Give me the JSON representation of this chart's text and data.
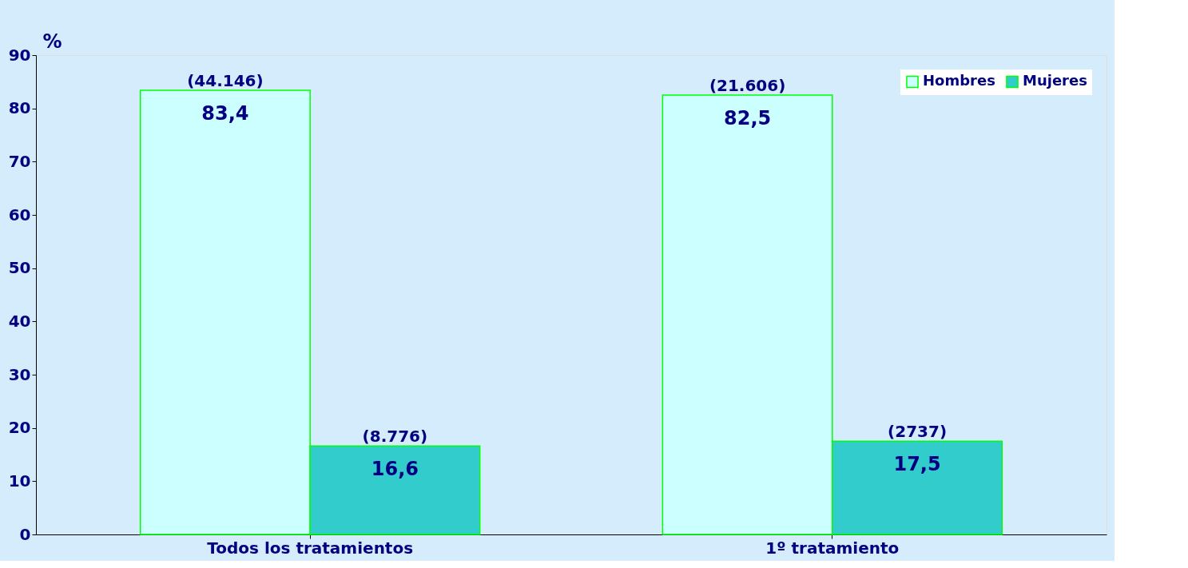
{
  "chart_data": {
    "type": "bar",
    "ylabel": "%",
    "categories": [
      "Todos los tratamientos",
      "1º tratamiento"
    ],
    "series": [
      {
        "name": "Hombres",
        "color": "#ccffff",
        "values": [
          83.4,
          82.5
        ],
        "value_labels": [
          "83,4",
          "82,5"
        ]
      },
      {
        "name": "Mujeres",
        "color": "#33cccc",
        "values": [
          16.6,
          17.5
        ],
        "value_labels": [
          "16,6",
          "17,5"
        ]
      }
    ],
    "annotations": [
      "(44.146)",
      "(8.776)",
      "(21.606)",
      "(2737)"
    ],
    "ylim": [
      0,
      90
    ],
    "yticks": [
      0,
      10,
      20,
      30,
      40,
      50,
      60,
      70,
      80,
      90
    ],
    "grid": false,
    "legend": "top right"
  }
}
